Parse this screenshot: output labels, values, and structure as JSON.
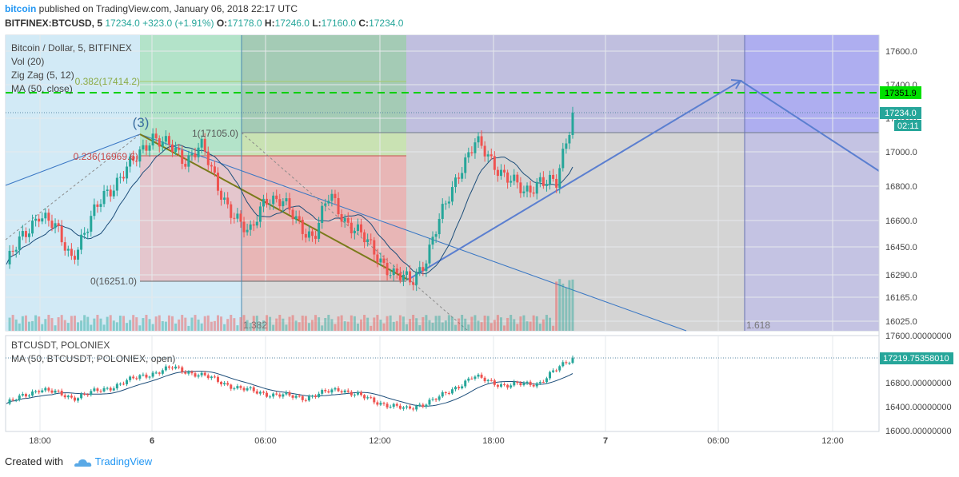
{
  "header": {
    "brand": "bitcoin",
    "published": "published on TradingView.com, January 06, 2018 22:17 UTC",
    "symbol": "BITFINEX:BTCUSD, 5",
    "last": "17234.0",
    "change": "+323.0 (+1.91%)",
    "o_label": "O:",
    "o": "17178.0",
    "h_label": "H:",
    "h": "17246.0",
    "l_label": "L:",
    "l": "17160.0",
    "c_label": "C:",
    "c": "17234.0"
  },
  "legend": [
    "Bitcoin / Dollar, 5, BITFINEX",
    "Vol (20)",
    "Zig Zag (5, 12)",
    "MA (50, close)"
  ],
  "legend2": [
    "BTCUSDT, POLONIEX",
    "MA (50, BTCUSDT, POLONIEX, open)"
  ],
  "annotations": {
    "wave": "(3)",
    "fib_0382": "0.382(17414.2)",
    "fib_1": "1(17105.0)",
    "fib_0236": "0.236(16969.6)",
    "fib_0": "0(16251.0)",
    "ratio_1": "1.382",
    "ratio_2": "1.618"
  },
  "price_tags": {
    "hline": "17351.9",
    "last": "17234.0",
    "countdown": "02:11",
    "last2": "17219.75358010"
  },
  "colors": {
    "up": "#26a69a",
    "down": "#ef5350",
    "accent": "#2196f3",
    "hline": "#00e000"
  },
  "footer": {
    "created": "Created with",
    "brand": "TradingView"
  },
  "chart_data": [
    {
      "type": "line",
      "title": "Bitcoin / Dollar, 5, BITFINEX",
      "y_axis_ticks": [
        17600,
        17400,
        17200,
        17000,
        16800,
        16600,
        16450,
        16290,
        16165,
        16025
      ],
      "y_tick_labels": [
        "17600.0",
        "17400.0",
        "17200.0",
        "17000.0",
        "16800.0",
        "16600.0",
        "16450.0",
        "16290.0",
        "16165.0",
        "16025.0"
      ],
      "x_tick_labels": [
        "18:00",
        "6",
        "06:00",
        "12:00",
        "18:00",
        "7",
        "06:00",
        "12:00"
      ],
      "series": [
        {
          "name": "BTCUSD",
          "x": [
            "15:00",
            "16:00",
            "17:00",
            "18:00",
            "19:00",
            "20:00",
            "21:00",
            "22:00",
            "23:00",
            "00:00",
            "00:30",
            "01:00",
            "02:00",
            "03:00",
            "04:00",
            "05:00",
            "06:00",
            "07:00",
            "08:00",
            "09:00",
            "10:00",
            "10:30",
            "11:00",
            "12:00",
            "13:00",
            "13:30",
            "14:00",
            "15:00",
            "16:00",
            "17:00",
            "18:00",
            "19:00",
            "20:00",
            "21:00",
            "22:00",
            "22:15"
          ],
          "values": [
            16350,
            16500,
            16650,
            16550,
            16400,
            16550,
            16750,
            16850,
            16950,
            17105,
            17030,
            16950,
            17050,
            16800,
            16650,
            16500,
            16750,
            16700,
            16600,
            16500,
            16750,
            16600,
            16500,
            16400,
            16280,
            16251,
            16400,
            16650,
            16900,
            17050,
            16950,
            16850,
            16750,
            16850,
            16800,
            17234
          ]
        }
      ],
      "fib_levels": [
        {
          "ratio": 0,
          "price": 16251.0
        },
        {
          "ratio": 0.236,
          "price": 16969.6
        },
        {
          "ratio": 0.382,
          "price": 17414.2
        },
        {
          "ratio": 1,
          "price": 17105.0
        }
      ],
      "horizontal_line": 17351.9,
      "last_price": 17234.0
    },
    {
      "type": "line",
      "title": "BTCUSDT, POLONIEX",
      "y_axis_ticks": [
        16800,
        16400,
        16000
      ],
      "y_tick_labels": [
        "16800.00000000",
        "16400.00000000",
        "16000.00000000"
      ],
      "top_tick_label": "17600.00000000",
      "series": [
        {
          "name": "BTCUSDT",
          "x": [
            "15:00",
            "17:00",
            "19:00",
            "21:00",
            "23:00",
            "00:30",
            "02:00",
            "04:00",
            "06:00",
            "08:00",
            "10:00",
            "12:00",
            "13:30",
            "15:00",
            "17:00",
            "19:00",
            "21:00",
            "22:15"
          ],
          "values": [
            16450,
            16700,
            16550,
            16700,
            16900,
            17050,
            16900,
            16700,
            16600,
            16550,
            16700,
            16500,
            16350,
            16550,
            16900,
            16750,
            16800,
            17219.75
          ]
        }
      ],
      "last_price": 17219.7535801
    }
  ]
}
